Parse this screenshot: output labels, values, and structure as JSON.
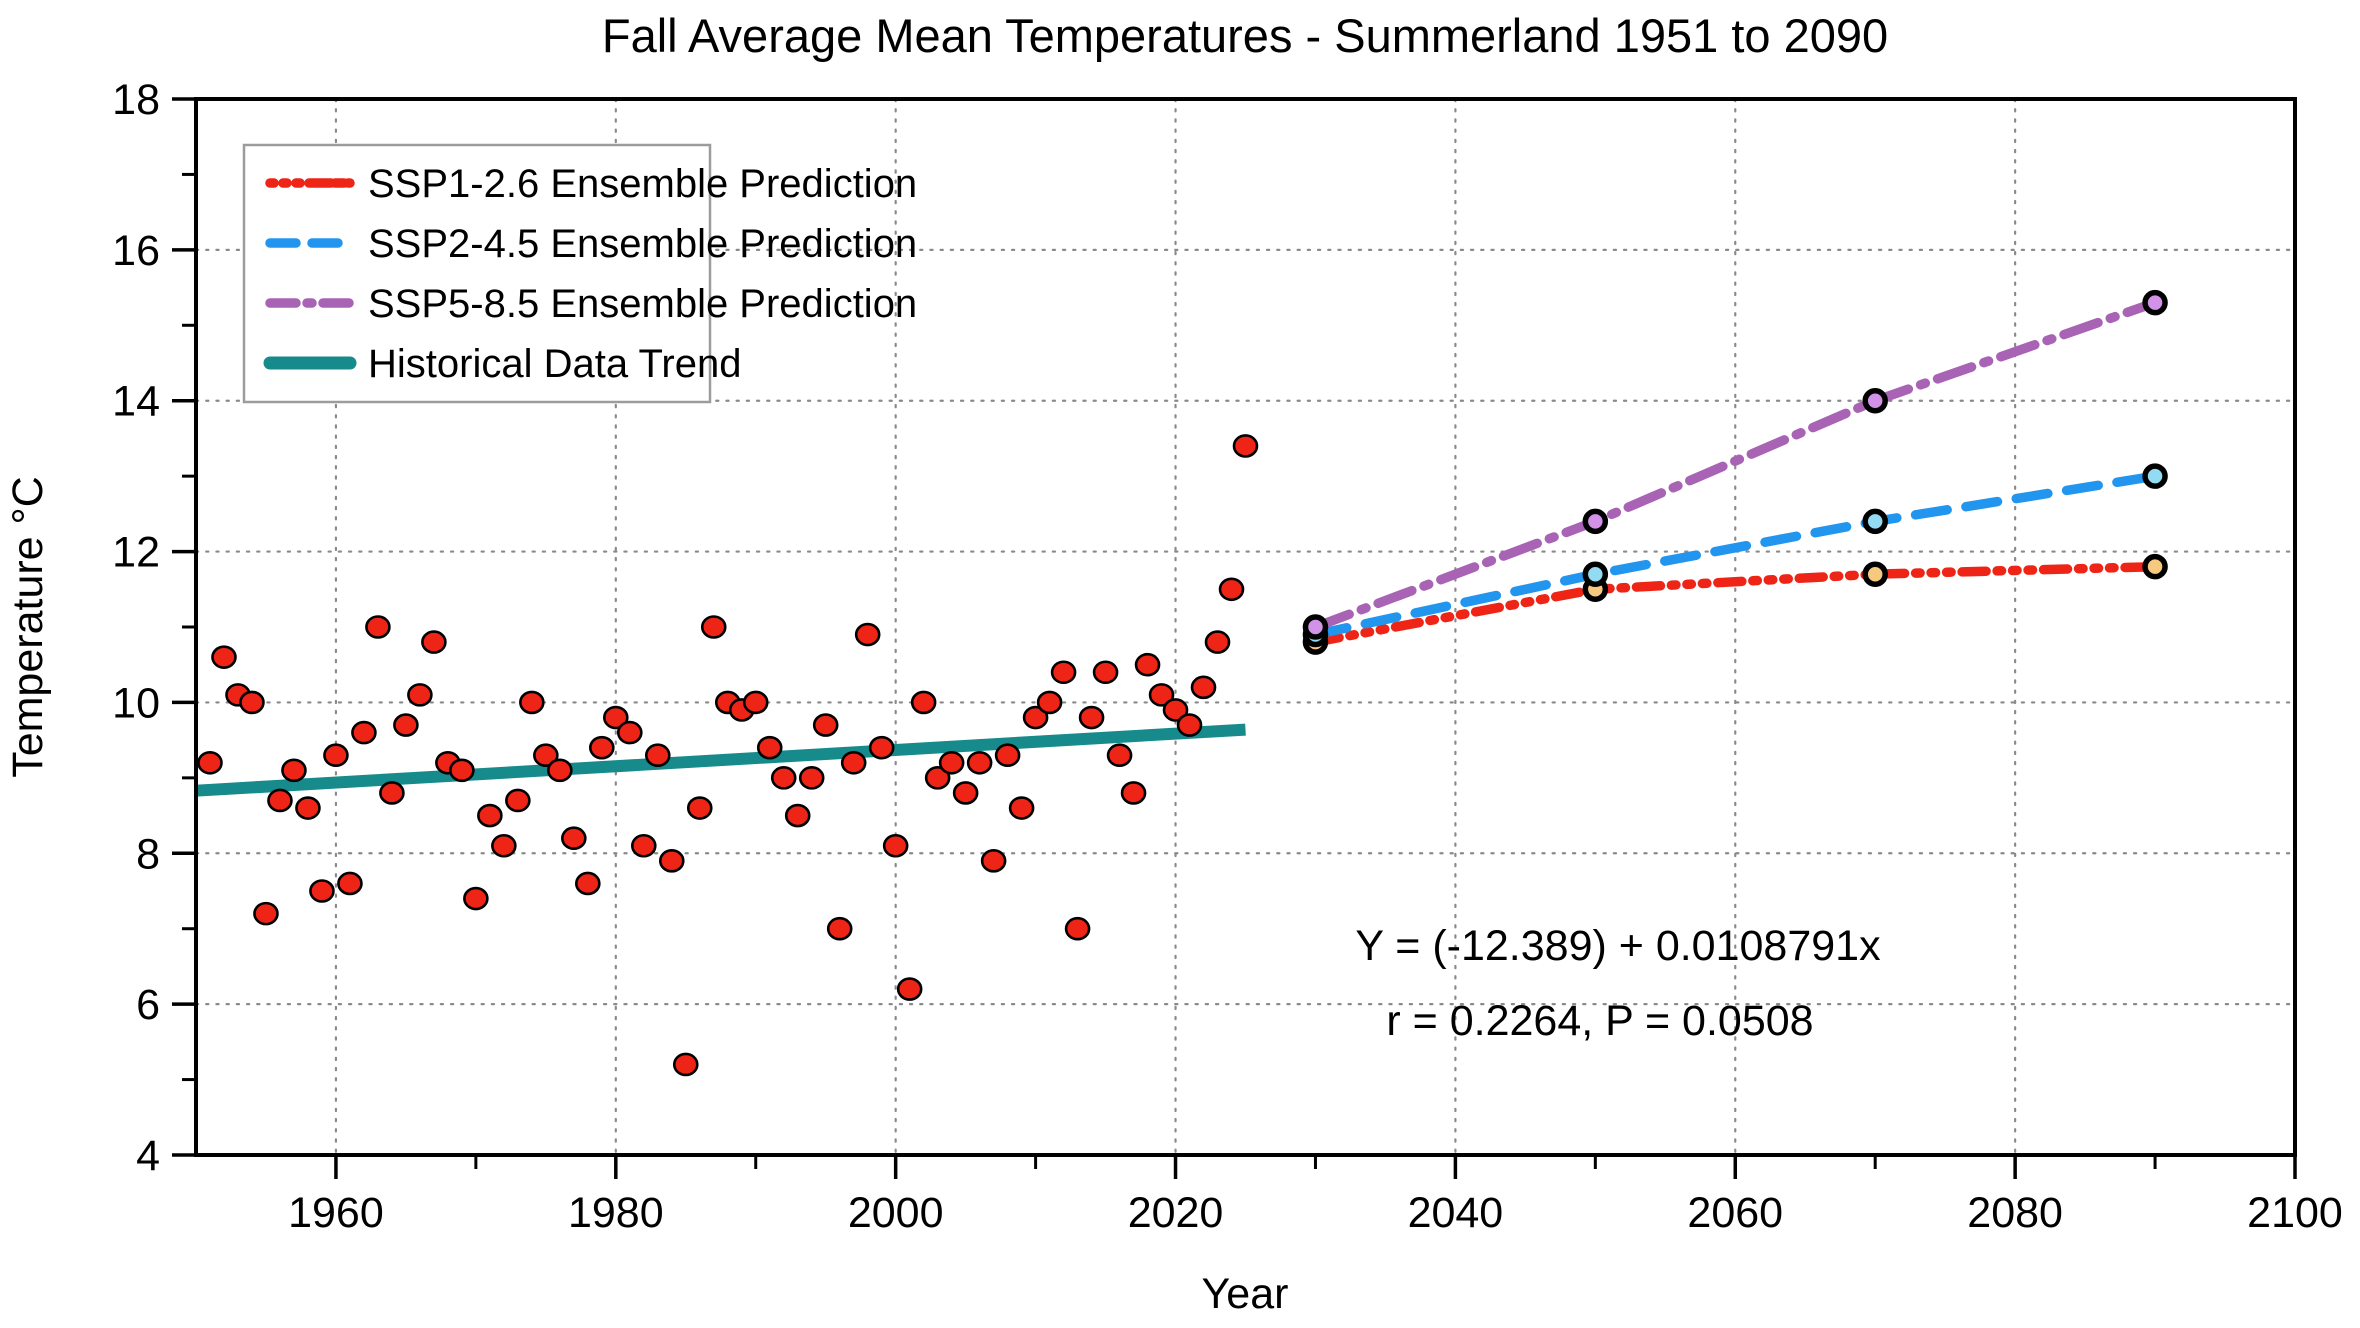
{
  "title": "Fall Average Mean Temperatures - Summerland 1951 to 2090",
  "axes": {
    "x": {
      "label": "Year",
      "min": 1950,
      "max": 2100,
      "major_ticks": [
        1960,
        1980,
        2000,
        2020,
        2040,
        2060,
        2080,
        2100
      ],
      "minor_ticks": [
        1970,
        1990,
        2010,
        2030,
        2050,
        2070,
        2090
      ],
      "grid": "dotted"
    },
    "y": {
      "label": "Temperature °C",
      "min": 4,
      "max": 18,
      "major_ticks": [
        4,
        6,
        8,
        10,
        12,
        14,
        16,
        18
      ],
      "minor_ticks": [
        5,
        7,
        9,
        11,
        13,
        15,
        17
      ],
      "grid": "dotted"
    }
  },
  "legend": {
    "items": [
      {
        "label": "SSP1-2.6 Ensemble Prediction",
        "color": "#ee2516",
        "style": "dash-dot-dot-dot"
      },
      {
        "label": "SSP2-4.5 Ensemble Prediction",
        "color": "#2295ee",
        "style": "dashed"
      },
      {
        "label": "SSP5-8.5 Ensemble Prediction",
        "color": "#a863b5",
        "style": "dash-dot"
      },
      {
        "label": "Historical Data Trend",
        "color": "#178a8c",
        "style": "solid"
      }
    ]
  },
  "annotation": {
    "line1": "Y = (-12.389) + 0.0108791x",
    "line2": "r = 0.2264, P = 0.0508",
    "color": "#178a8c"
  },
  "chart_data": {
    "type": "scatter",
    "title": "Fall Average Mean Temperatures - Summerland 1951 to 2090",
    "xlabel": "Year",
    "ylabel": "Temperature °C",
    "xlim": [
      1950,
      2100
    ],
    "ylim": [
      4,
      18
    ],
    "grid": true,
    "legend_position": "upper left",
    "historical_scatter": {
      "name": "Historical Fall Mean Temperature",
      "marker_color": "#ee2516",
      "marker_edge": "#000000",
      "points": [
        [
          1951,
          9.2
        ],
        [
          1952,
          10.6
        ],
        [
          1953,
          10.1
        ],
        [
          1954,
          10.0
        ],
        [
          1955,
          7.2
        ],
        [
          1956,
          8.7
        ],
        [
          1957,
          9.1
        ],
        [
          1958,
          8.6
        ],
        [
          1959,
          7.5
        ],
        [
          1960,
          9.3
        ],
        [
          1961,
          7.6
        ],
        [
          1962,
          9.6
        ],
        [
          1963,
          11.0
        ],
        [
          1964,
          8.8
        ],
        [
          1965,
          9.7
        ],
        [
          1966,
          10.1
        ],
        [
          1967,
          10.8
        ],
        [
          1968,
          9.2
        ],
        [
          1969,
          9.1
        ],
        [
          1970,
          7.4
        ],
        [
          1971,
          8.5
        ],
        [
          1972,
          8.1
        ],
        [
          1973,
          8.7
        ],
        [
          1974,
          10.0
        ],
        [
          1975,
          9.3
        ],
        [
          1976,
          9.1
        ],
        [
          1977,
          8.2
        ],
        [
          1978,
          7.6
        ],
        [
          1979,
          9.4
        ],
        [
          1980,
          9.8
        ],
        [
          1981,
          9.6
        ],
        [
          1982,
          8.1
        ],
        [
          1983,
          9.3
        ],
        [
          1984,
          7.9
        ],
        [
          1985,
          5.2
        ],
        [
          1986,
          8.6
        ],
        [
          1987,
          11.0
        ],
        [
          1988,
          10.0
        ],
        [
          1989,
          9.9
        ],
        [
          1990,
          10.0
        ],
        [
          1991,
          9.4
        ],
        [
          1992,
          9.0
        ],
        [
          1993,
          8.5
        ],
        [
          1994,
          9.0
        ],
        [
          1995,
          9.7
        ],
        [
          1996,
          7.0
        ],
        [
          1997,
          9.2
        ],
        [
          1998,
          10.9
        ],
        [
          1999,
          9.4
        ],
        [
          2000,
          8.1
        ],
        [
          2001,
          6.2
        ],
        [
          2002,
          10.0
        ],
        [
          2003,
          9.0
        ],
        [
          2004,
          9.2
        ],
        [
          2005,
          8.8
        ],
        [
          2006,
          9.2
        ],
        [
          2007,
          7.9
        ],
        [
          2008,
          9.3
        ],
        [
          2009,
          8.6
        ],
        [
          2010,
          9.8
        ],
        [
          2011,
          10.0
        ],
        [
          2012,
          10.4
        ],
        [
          2013,
          7.0
        ],
        [
          2014,
          9.8
        ],
        [
          2015,
          10.4
        ],
        [
          2016,
          9.3
        ],
        [
          2017,
          8.8
        ],
        [
          2018,
          10.5
        ],
        [
          2019,
          10.1
        ],
        [
          2020,
          9.9
        ],
        [
          2021,
          9.7
        ],
        [
          2022,
          10.2
        ],
        [
          2023,
          10.8
        ],
        [
          2024,
          11.5
        ],
        [
          2025,
          13.4
        ]
      ]
    },
    "trend_line": {
      "name": "Historical Data Trend",
      "color": "#178a8c",
      "equation": "Y = (-12.389) + 0.0108791x",
      "r": 0.2264,
      "p": 0.0508,
      "x": [
        1950,
        2025
      ],
      "y": [
        8.83,
        9.64
      ]
    },
    "predictions": [
      {
        "name": "SSP1-2.6 Ensemble Prediction",
        "color": "#ee2516",
        "marker_fill": "#f7c97e",
        "dash_style": "dash-dot-dot-dot",
        "x": [
          2030,
          2050,
          2070,
          2090
        ],
        "y": [
          10.8,
          11.5,
          11.7,
          11.8
        ]
      },
      {
        "name": "SSP2-4.5 Ensemble Prediction",
        "color": "#2295ee",
        "marker_fill": "#93dbf2",
        "dash_style": "dashed",
        "x": [
          2030,
          2050,
          2070,
          2090
        ],
        "y": [
          10.9,
          11.7,
          12.4,
          13.0
        ]
      },
      {
        "name": "SSP5-8.5 Ensemble Prediction",
        "color": "#a863b5",
        "marker_fill": "#d292e8",
        "dash_style": "dash-dot",
        "x": [
          2030,
          2050,
          2070,
          2090
        ],
        "y": [
          11.0,
          12.4,
          14.0,
          15.3
        ]
      }
    ]
  }
}
